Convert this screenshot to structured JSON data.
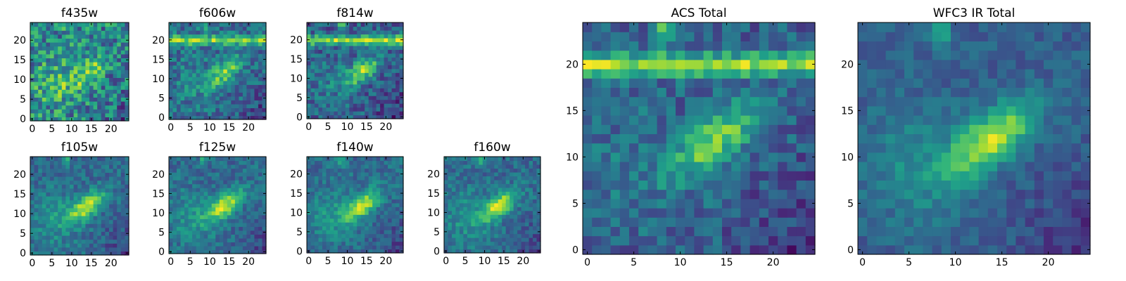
{
  "chart_data": [
    {
      "type": "heatmap",
      "title": "f435w",
      "xticks": [
        0,
        5,
        10,
        15,
        20
      ],
      "yticks": [
        0,
        5,
        10,
        15,
        20
      ],
      "xlim": [
        0,
        25
      ],
      "ylim": [
        0,
        25
      ],
      "grid_size": 25,
      "colormap": "viridis"
    },
    {
      "type": "heatmap",
      "title": "f606w",
      "xticks": [
        0,
        5,
        10,
        15,
        20
      ],
      "yticks": [
        0,
        5,
        10,
        15,
        20
      ],
      "xlim": [
        0,
        25
      ],
      "ylim": [
        0,
        25
      ],
      "grid_size": 25,
      "colormap": "viridis"
    },
    {
      "type": "heatmap",
      "title": "f814w",
      "xticks": [
        0,
        5,
        10,
        15,
        20
      ],
      "yticks": [
        0,
        5,
        10,
        15,
        20
      ],
      "xlim": [
        0,
        25
      ],
      "ylim": [
        0,
        25
      ],
      "grid_size": 25,
      "colormap": "viridis"
    },
    {
      "type": "heatmap",
      "title": "f105w",
      "xticks": [
        0,
        5,
        10,
        15,
        20
      ],
      "yticks": [
        0,
        5,
        10,
        15,
        20
      ],
      "xlim": [
        0,
        25
      ],
      "ylim": [
        0,
        25
      ],
      "grid_size": 25,
      "colormap": "viridis"
    },
    {
      "type": "heatmap",
      "title": "f125w",
      "xticks": [
        0,
        5,
        10,
        15,
        20
      ],
      "yticks": [
        0,
        5,
        10,
        15,
        20
      ],
      "xlim": [
        0,
        25
      ],
      "ylim": [
        0,
        25
      ],
      "grid_size": 25,
      "colormap": "viridis"
    },
    {
      "type": "heatmap",
      "title": "f140w",
      "xticks": [
        0,
        5,
        10,
        15,
        20
      ],
      "yticks": [
        0,
        5,
        10,
        15,
        20
      ],
      "xlim": [
        0,
        25
      ],
      "ylim": [
        0,
        25
      ],
      "grid_size": 25,
      "colormap": "viridis"
    },
    {
      "type": "heatmap",
      "title": "f160w",
      "xticks": [
        0,
        5,
        10,
        15,
        20
      ],
      "yticks": [
        0,
        5,
        10,
        15,
        20
      ],
      "xlim": [
        0,
        25
      ],
      "ylim": [
        0,
        25
      ],
      "grid_size": 25,
      "colormap": "viridis"
    },
    {
      "type": "heatmap",
      "title": "ACS Total",
      "xticks": [
        0,
        5,
        10,
        15,
        20
      ],
      "yticks": [
        0,
        5,
        10,
        15,
        20
      ],
      "xlim": [
        0,
        25
      ],
      "ylim": [
        0,
        25
      ],
      "grid_size": 25,
      "colormap": "viridis"
    },
    {
      "type": "heatmap",
      "title": "WFC3 IR Total",
      "xticks": [
        0,
        5,
        10,
        15,
        20
      ],
      "yticks": [
        0,
        5,
        10,
        15,
        20
      ],
      "xlim": [
        0,
        25
      ],
      "ylim": [
        0,
        25
      ],
      "grid_size": 25,
      "colormap": "viridis"
    }
  ]
}
